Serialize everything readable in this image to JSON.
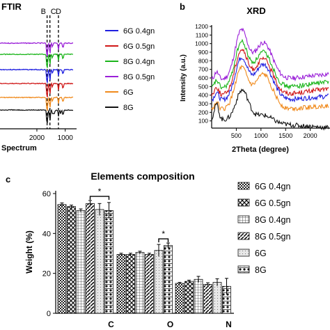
{
  "panels": {
    "ftir_title": "FTIR",
    "b_label": "b",
    "c_label": "c"
  },
  "chart_data": [
    {
      "type": "line",
      "title": "FTIR",
      "xlabel": "Spectrum",
      "ylabel": "",
      "xlim": [
        3300,
        600
      ],
      "x_reversed": true,
      "xticks": [
        "2000",
        "1000"
      ],
      "markers": [
        "B",
        "C",
        "D"
      ],
      "marker_positions": [
        1640,
        1540,
        1240
      ],
      "series": [
        {
          "name": "6G 0.4gn",
          "color": "#1f1fe0"
        },
        {
          "name": "6G 0.5gn",
          "color": "#d01818"
        },
        {
          "name": "8G 0.4gn",
          "color": "#1bb51b"
        },
        {
          "name": "8G 0.5gn",
          "color": "#9a1fd8"
        },
        {
          "name": "6G",
          "color": "#f08a1c"
        },
        {
          "name": "8G",
          "color": "#111111"
        }
      ],
      "legend_position": "right"
    },
    {
      "type": "line",
      "title": "XRD",
      "xlabel": "2Theta (degree)",
      "ylabel": "Intensity (a.u.)",
      "ylim": [
        0,
        1200
      ],
      "yticks": [
        100,
        200,
        300,
        400,
        500,
        600,
        700,
        800,
        900,
        1000,
        1100,
        1200
      ],
      "xlim": [
        0,
        2400
      ],
      "xticks": [
        "500",
        "1000",
        "1500",
        "2000"
      ],
      "series": [
        {
          "color": "#9a1fd8",
          "baseline": 580,
          "peak1": 1140,
          "peak2": 1010,
          "tail": 650
        },
        {
          "color": "#1bb51b",
          "baseline": 480,
          "peak1": 1000,
          "peak2": 900,
          "tail": 560
        },
        {
          "color": "#d01818",
          "baseline": 400,
          "peak1": 910,
          "peak2": 820,
          "tail": 480
        },
        {
          "color": "#1f1fe0",
          "baseline": 340,
          "peak1": 820,
          "peak2": 760,
          "tail": 390
        },
        {
          "color": "#f08a1c",
          "baseline": 230,
          "peak1": 700,
          "peak2": 640,
          "tail": 280
        },
        {
          "color": "#111111",
          "baseline": 120,
          "peak1": 480,
          "peak2": 230,
          "tail": 20
        }
      ]
    },
    {
      "type": "bar",
      "title": "Elements composition",
      "xlabel": "",
      "ylabel": "Weight (%)",
      "ylim": [
        0,
        60
      ],
      "yticks": [
        0,
        20,
        40,
        60
      ],
      "categories": [
        "C",
        "O",
        "N"
      ],
      "series": [
        {
          "name": "6G 0.4gn",
          "values": [
            54.5,
            29.5,
            15.0
          ],
          "errors": [
            0.8,
            0.6,
            0.5
          ]
        },
        {
          "name": "6G 0.5gn",
          "values": [
            53.5,
            29.5,
            16.0
          ],
          "errors": [
            0.7,
            0.6,
            0.6
          ]
        },
        {
          "name": "8G 0.4gn",
          "values": [
            51.5,
            30.5,
            17.0
          ],
          "errors": [
            0.8,
            0.6,
            1.5
          ]
        },
        {
          "name": "8G 0.5gn",
          "values": [
            55.0,
            29.5,
            14.5
          ],
          "errors": [
            1.5,
            0.6,
            0.8
          ]
        },
        {
          "name": "6G",
          "values": [
            52.0,
            31.5,
            15.5
          ],
          "errors": [
            3.0,
            3.0,
            1.8
          ]
        },
        {
          "name": "8G",
          "values": [
            51.5,
            34.0,
            13.5
          ],
          "errors": [
            4.0,
            1.2,
            4.0
          ]
        }
      ],
      "significance": [
        {
          "category": "C",
          "from": 3,
          "to": 5,
          "label": "*"
        },
        {
          "category": "O",
          "from": 4,
          "to": 5,
          "label": "*"
        }
      ],
      "legend_position": "right"
    }
  ]
}
